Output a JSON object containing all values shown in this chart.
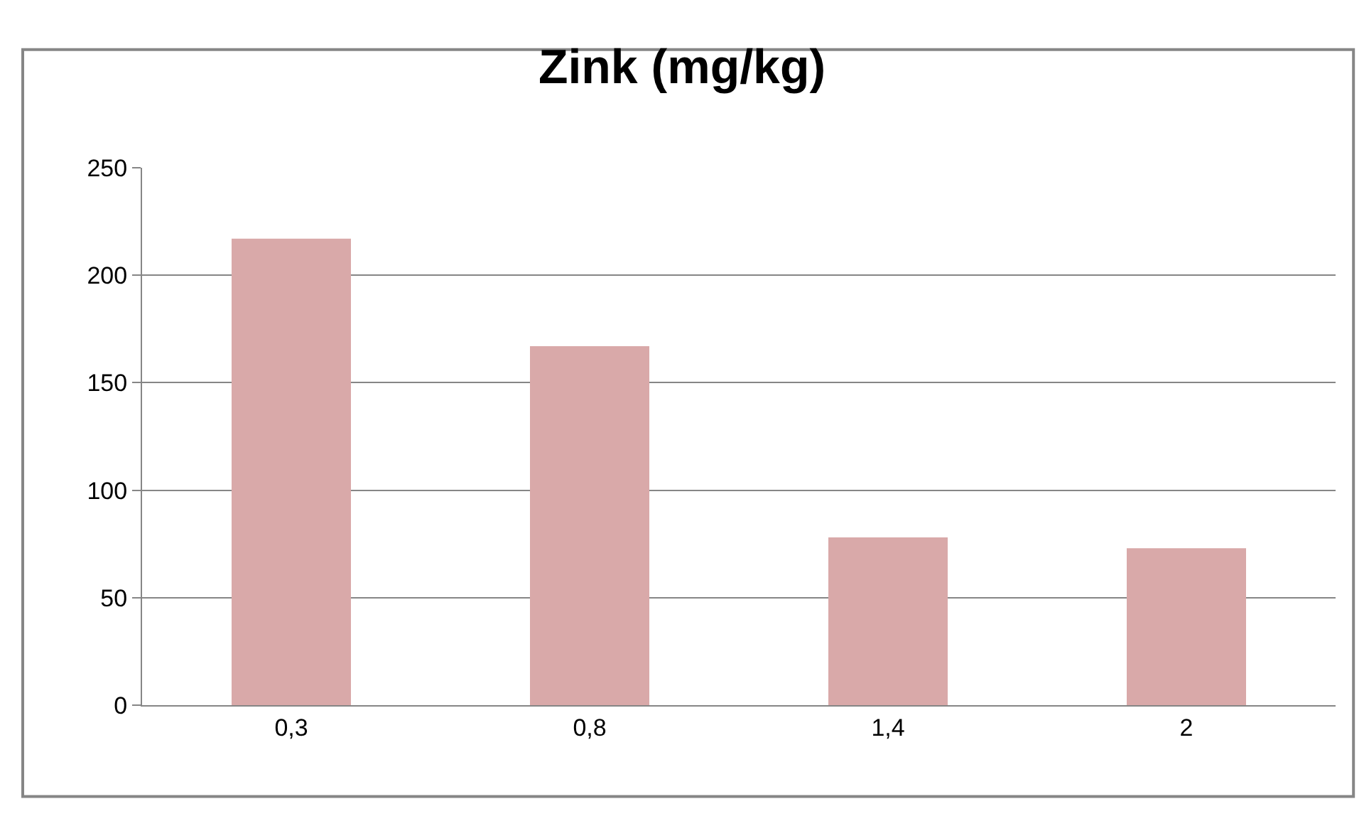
{
  "chart_data": {
    "type": "bar",
    "title": "Zink (mg/kg)",
    "categories": [
      "0,3",
      "0,8",
      "1,4",
      "2"
    ],
    "values": [
      217,
      167,
      78,
      73
    ],
    "color": "#d9a9a9",
    "ylim": [
      0,
      250
    ],
    "yticks": [
      0,
      50,
      100,
      150,
      200,
      250
    ],
    "grid": "y",
    "legend": false
  }
}
